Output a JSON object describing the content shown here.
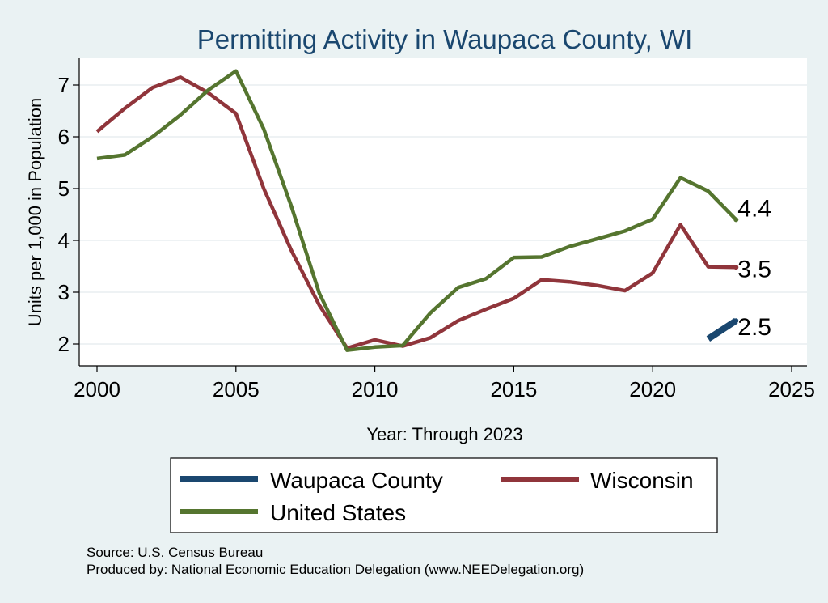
{
  "chart_data": {
    "type": "line",
    "title": "Permitting Activity in Waupaca County, WI",
    "xlabel": "Year: Through 2023",
    "ylabel": "Units per 1,000 in Population",
    "xlim": [
      2000,
      2025
    ],
    "ylim": [
      1.6,
      7.5
    ],
    "xticks": [
      2000,
      2005,
      2010,
      2015,
      2020,
      2025
    ],
    "yticks": [
      2,
      3,
      4,
      5,
      6,
      7
    ],
    "grid": true,
    "series": [
      {
        "name": "Waupaca County",
        "color": "#1a476f",
        "x": [
          2022,
          2023
        ],
        "values": [
          2.1,
          2.45
        ],
        "end_label": "2.5"
      },
      {
        "name": "Wisconsin",
        "color": "#90353b",
        "x": [
          2000,
          2001,
          2002,
          2003,
          2004,
          2005,
          2006,
          2007,
          2008,
          2009,
          2010,
          2011,
          2012,
          2013,
          2014,
          2015,
          2016,
          2017,
          2018,
          2019,
          2020,
          2021,
          2022,
          2023
        ],
        "values": [
          6.1,
          6.55,
          6.95,
          7.15,
          6.85,
          6.45,
          5.0,
          3.8,
          2.75,
          1.92,
          2.08,
          1.96,
          2.12,
          2.45,
          2.67,
          2.88,
          3.24,
          3.2,
          3.13,
          3.03,
          3.37,
          4.3,
          3.49,
          3.48
        ],
        "end_label": "3.5"
      },
      {
        "name": "United States",
        "color": "#55752f",
        "x": [
          2000,
          2001,
          2002,
          2003,
          2004,
          2005,
          2006,
          2007,
          2008,
          2009,
          2010,
          2011,
          2012,
          2013,
          2014,
          2015,
          2016,
          2017,
          2018,
          2019,
          2020,
          2021,
          2022,
          2023
        ],
        "values": [
          5.58,
          5.65,
          6.0,
          6.42,
          6.9,
          7.27,
          6.15,
          4.65,
          2.98,
          1.88,
          1.94,
          1.97,
          2.6,
          3.09,
          3.26,
          3.67,
          3.68,
          3.88,
          4.03,
          4.18,
          4.41,
          5.21,
          4.95,
          4.4
        ],
        "end_label": "4.4"
      }
    ],
    "legend": {
      "position": "bottom",
      "entries": [
        "Waupaca County",
        "Wisconsin",
        "United States"
      ]
    }
  },
  "notes": {
    "source": "Source: U.S. Census Bureau",
    "produced_by": "Produced by: National Economic Education Delegation (www.NEEDelegation.org)"
  },
  "colors": {
    "background": "#eaf2f3",
    "plot_background": "#ffffff",
    "waupaca": "#1a476f",
    "wisconsin": "#90353b",
    "united_states": "#55752f"
  }
}
